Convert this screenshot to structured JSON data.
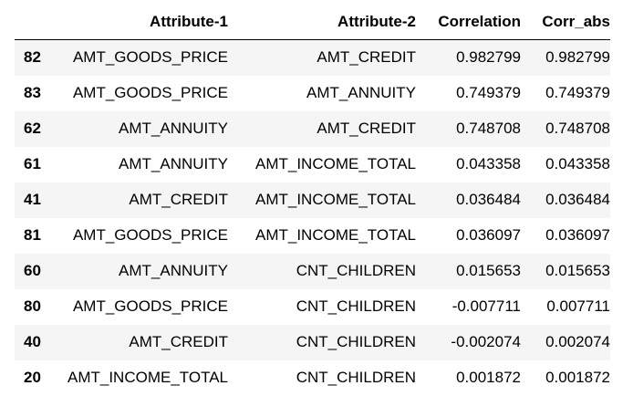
{
  "table": {
    "columns": [
      "",
      "Attribute-1",
      "Attribute-2",
      "Correlation",
      "Corr_abs"
    ],
    "rows": [
      {
        "index": "82",
        "attr1": "AMT_GOODS_PRICE",
        "attr2": "AMT_CREDIT",
        "corr": "0.982799",
        "corr_abs": "0.982799"
      },
      {
        "index": "83",
        "attr1": "AMT_GOODS_PRICE",
        "attr2": "AMT_ANNUITY",
        "corr": "0.749379",
        "corr_abs": "0.749379"
      },
      {
        "index": "62",
        "attr1": "AMT_ANNUITY",
        "attr2": "AMT_CREDIT",
        "corr": "0.748708",
        "corr_abs": "0.748708"
      },
      {
        "index": "61",
        "attr1": "AMT_ANNUITY",
        "attr2": "AMT_INCOME_TOTAL",
        "corr": "0.043358",
        "corr_abs": "0.043358"
      },
      {
        "index": "41",
        "attr1": "AMT_CREDIT",
        "attr2": "AMT_INCOME_TOTAL",
        "corr": "0.036484",
        "corr_abs": "0.036484"
      },
      {
        "index": "81",
        "attr1": "AMT_GOODS_PRICE",
        "attr2": "AMT_INCOME_TOTAL",
        "corr": "0.036097",
        "corr_abs": "0.036097"
      },
      {
        "index": "60",
        "attr1": "AMT_ANNUITY",
        "attr2": "CNT_CHILDREN",
        "corr": "0.015653",
        "corr_abs": "0.015653"
      },
      {
        "index": "80",
        "attr1": "AMT_GOODS_PRICE",
        "attr2": "CNT_CHILDREN",
        "corr": "-0.007711",
        "corr_abs": "0.007711"
      },
      {
        "index": "40",
        "attr1": "AMT_CREDIT",
        "attr2": "CNT_CHILDREN",
        "corr": "-0.002074",
        "corr_abs": "0.002074"
      },
      {
        "index": "20",
        "attr1": "AMT_INCOME_TOTAL",
        "attr2": "CNT_CHILDREN",
        "corr": "0.001872",
        "corr_abs": "0.001872"
      }
    ]
  }
}
